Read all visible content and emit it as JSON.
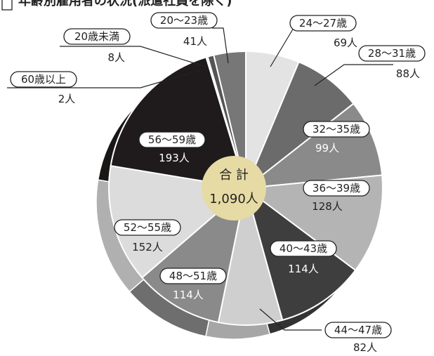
{
  "title_fragment": "年齢別雇用者の状況(派遣社員を除く)",
  "chart_data": {
    "type": "pie",
    "total_label": "合 計",
    "total_value": "1,090人",
    "slices": [
      {
        "label": "24〜27歳",
        "value": 69,
        "value_text": "69人",
        "color": "#e3e3e3",
        "text_color": "#222222"
      },
      {
        "label": "28〜31歳",
        "value": 88,
        "value_text": "88人",
        "color": "#6b6b6b",
        "text_color": "#222222"
      },
      {
        "label": "32〜35歳",
        "value": 99,
        "value_text": "99人",
        "color": "#8a8a8a",
        "text_color": "#ffffff"
      },
      {
        "label": "36〜39歳",
        "value": 128,
        "value_text": "128人",
        "color": "#b4b4b4",
        "text_color": "#222222"
      },
      {
        "label": "40〜43歳",
        "value": 114,
        "value_text": "114人",
        "color": "#3e3e3e",
        "text_color": "#ffffff"
      },
      {
        "label": "44〜47歳",
        "value": 82,
        "value_text": "82人",
        "color": "#cfcfcf",
        "text_color": "#222222"
      },
      {
        "label": "48〜51歳",
        "value": 114,
        "value_text": "114人",
        "color": "#8a8a8a",
        "text_color": "#ffffff"
      },
      {
        "label": "52〜55歳",
        "value": 152,
        "value_text": "152人",
        "color": "#dcdcdc",
        "text_color": "#222222"
      },
      {
        "label": "56〜59歳",
        "value": 193,
        "value_text": "193人",
        "color": "#1f1b1c",
        "text_color": "#ffffff"
      },
      {
        "label": "60歳以上",
        "value": 2,
        "value_text": "2人",
        "color": "#bdbdbd",
        "text_color": "#222222"
      },
      {
        "label": "20歳未満",
        "value": 8,
        "value_text": "8人",
        "color": "#555555",
        "text_color": "#222222"
      },
      {
        "label": "20〜23歳",
        "value": 41,
        "value_text": "41人",
        "color": "#777777",
        "text_color": "#222222"
      }
    ],
    "center_color": "#e6dba4"
  }
}
